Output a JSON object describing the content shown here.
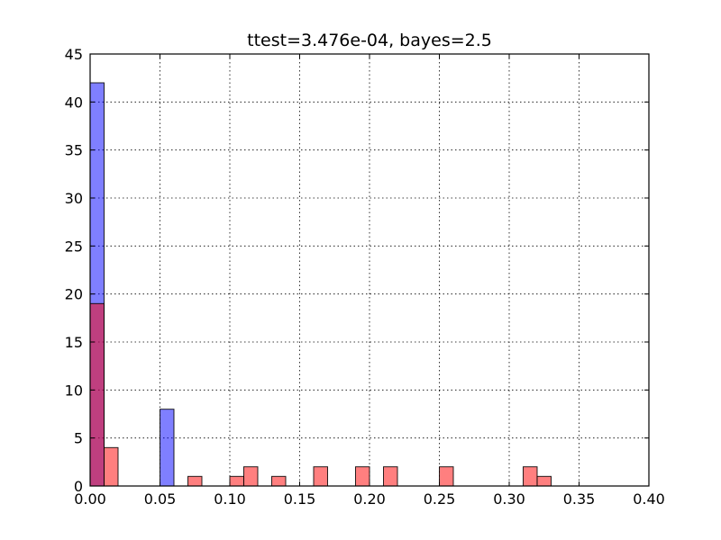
{
  "chart_data": {
    "type": "bar",
    "title": "ttest=3.476e-04, bayes=2.5",
    "xlabel": "",
    "ylabel": "",
    "xlim": [
      0,
      0.4
    ],
    "ylim": [
      0,
      45
    ],
    "grid": true,
    "x_ticks": [
      0.0,
      0.05,
      0.1,
      0.15,
      0.2,
      0.25,
      0.3,
      0.35,
      0.4
    ],
    "x_tick_labels": [
      "0.00",
      "0.05",
      "0.10",
      "0.15",
      "0.20",
      "0.25",
      "0.30",
      "0.35",
      "0.40"
    ],
    "y_ticks": [
      0,
      5,
      10,
      15,
      20,
      25,
      30,
      35,
      40,
      45
    ],
    "y_tick_labels": [
      "0",
      "5",
      "10",
      "15",
      "20",
      "25",
      "30",
      "35",
      "40",
      "45"
    ],
    "bin_width": 0.01,
    "series": [
      {
        "color": "#0000ff",
        "opacity": 0.5,
        "bins": [
          {
            "x0": 0.0,
            "x1": 0.01,
            "count": 42
          },
          {
            "x0": 0.05,
            "x1": 0.06,
            "count": 8
          }
        ]
      },
      {
        "color": "#ff0000",
        "opacity": 0.5,
        "bins": [
          {
            "x0": 0.0,
            "x1": 0.01,
            "count": 19
          },
          {
            "x0": 0.01,
            "x1": 0.02,
            "count": 4
          },
          {
            "x0": 0.07,
            "x1": 0.08,
            "count": 1
          },
          {
            "x0": 0.1,
            "x1": 0.11,
            "count": 1
          },
          {
            "x0": 0.11,
            "x1": 0.12,
            "count": 2
          },
          {
            "x0": 0.13,
            "x1": 0.14,
            "count": 1
          },
          {
            "x0": 0.16,
            "x1": 0.17,
            "count": 2
          },
          {
            "x0": 0.19,
            "x1": 0.2,
            "count": 2
          },
          {
            "x0": 0.21,
            "x1": 0.22,
            "count": 2
          },
          {
            "x0": 0.25,
            "x1": 0.26,
            "count": 2
          },
          {
            "x0": 0.31,
            "x1": 0.32,
            "count": 2
          },
          {
            "x0": 0.32,
            "x1": 0.33,
            "count": 1
          }
        ]
      }
    ]
  }
}
